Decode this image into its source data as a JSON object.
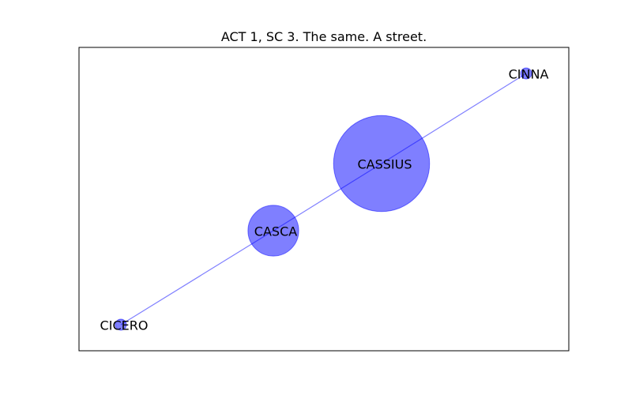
{
  "title": "ACT 1, SC 3. The same. A street.",
  "colors": {
    "node_fill": "#0000ff",
    "edge": "#0000ff",
    "frame": "#000000"
  },
  "graph": {
    "nodes": [
      {
        "id": "cinna",
        "label": "CINNA",
        "weight": 1
      },
      {
        "id": "cassius",
        "label": "CASSIUS",
        "weight": 19
      },
      {
        "id": "casca",
        "label": "CASCA",
        "weight": 6.6
      },
      {
        "id": "cicero",
        "label": "CICERO",
        "weight": 1
      }
    ],
    "edges": [
      {
        "source": "cicero",
        "target": "casca"
      },
      {
        "source": "casca",
        "target": "cassius"
      },
      {
        "source": "cassius",
        "target": "cinna"
      }
    ]
  }
}
